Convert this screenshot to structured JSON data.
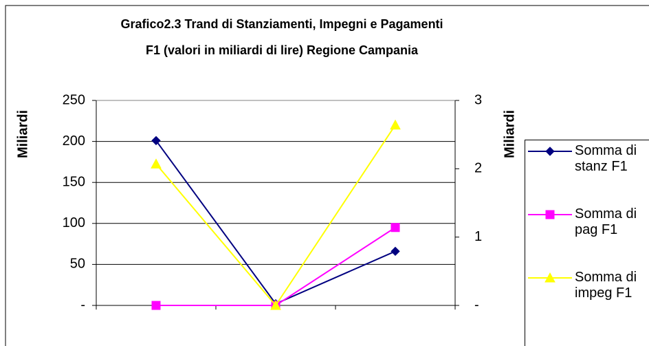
{
  "chart_data": {
    "type": "line",
    "title": "Grafico2.3 Trand di Stanziamenti, Impegni e Pagamenti\nF1 (valori in miliardi di lire) Regione Campania",
    "ylabel": "Miliardi",
    "y2label": "Miliardi",
    "categories": [
      null,
      null,
      null
    ],
    "series": [
      {
        "name": "Somma di stanz F1",
        "color": "#000080",
        "marker": "diamond",
        "values": [
          201,
          2,
          66
        ]
      },
      {
        "name": "Somma di pag F1",
        "color": "#ff00ff",
        "marker": "square",
        "axis": "y2",
        "values": [
          0,
          0,
          1.14
        ]
      },
      {
        "name": "Somma di impeg F1",
        "color": "#ffff00",
        "marker": "triangle",
        "axis": "y2",
        "values": [
          2.07,
          0,
          2.64
        ]
      }
    ],
    "ylim": [
      0,
      250
    ],
    "yticks": [
      {
        "value": 0,
        "label": "-"
      },
      50,
      100,
      150,
      200,
      250
    ],
    "y2lim": [
      0,
      3
    ],
    "y2ticks": [
      {
        "value": 0,
        "label": "-"
      },
      1,
      2,
      3
    ],
    "grid": true,
    "legend": "right"
  }
}
